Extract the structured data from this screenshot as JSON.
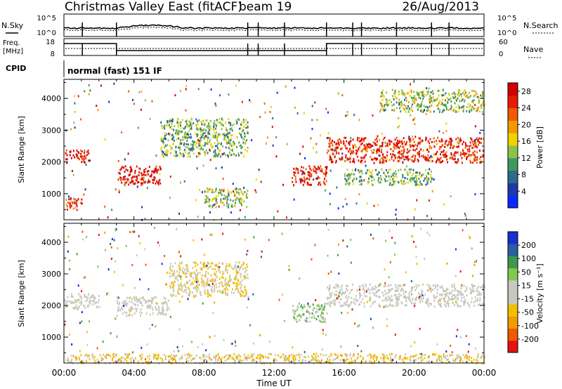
{
  "header": {
    "title": "Christmas Valley East (fitACF)",
    "beam": "beam 19",
    "date": "26/Aug/2013"
  },
  "panels": {
    "nsky_label": "N.Sky",
    "nsearch_label": "N.Search",
    "noise_ticks": [
      "10^5",
      "10^0"
    ],
    "freq_label_1": "Freq.",
    "freq_label_2": "[MHz]",
    "freq_ticks": [
      "18",
      "8"
    ],
    "nave_label": "Nave",
    "nave_ticks": [
      "60",
      "0"
    ],
    "cpid_label": "CPID",
    "cpid_value": "normal (fast) 151 IF"
  },
  "colors": {
    "power_scale": [
      "#0a2bff",
      "#1f3aa8",
      "#2e6a8c",
      "#3f9a5a",
      "#8bc34a",
      "#f0d200",
      "#f39a00",
      "#f05a00",
      "#e81a00",
      "#d40000"
    ],
    "velocity_scale": [
      "#e21212",
      "#f05a00",
      "#f59a00",
      "#f3c000",
      "#c8c8c0",
      "#c8c8c0",
      "#80c850",
      "#3c9a4a",
      "#2a5fa0",
      "#1a2fd0"
    ],
    "ground_scatter": "#c8c8c0"
  },
  "chart_data": [
    {
      "type": "heatmap",
      "name": "Power",
      "ylabel": "Slant Range [km]",
      "yticks": [
        1000,
        2000,
        3000,
        4000
      ],
      "ylim": [
        180,
        4600
      ],
      "colorbar_label": "Power [dB]",
      "colorbar_ticks": [
        4,
        8,
        12,
        16,
        20,
        24,
        28
      ],
      "colorbar_range": [
        0,
        30
      ],
      "bands": [
        {
          "t_start": 0.0,
          "t_end": 1.4,
          "r_start": 2000,
          "r_end": 2400,
          "peak": 27
        },
        {
          "t_start": 0.0,
          "t_end": 1.0,
          "r_start": 500,
          "r_end": 900,
          "peak": 26
        },
        {
          "t_start": 3.0,
          "t_end": 5.5,
          "r_start": 1300,
          "r_end": 1900,
          "peak": 28
        },
        {
          "t_start": 5.5,
          "t_end": 10.5,
          "r_start": 2200,
          "r_end": 3400,
          "peak": 12
        },
        {
          "t_start": 8.0,
          "t_end": 10.5,
          "r_start": 600,
          "r_end": 1200,
          "peak": 14
        },
        {
          "t_start": 13.0,
          "t_end": 15.0,
          "r_start": 1300,
          "r_end": 1900,
          "peak": 27
        },
        {
          "t_start": 15.0,
          "t_end": 24.0,
          "r_start": 2000,
          "r_end": 2800,
          "peak": 26
        },
        {
          "t_start": 16.0,
          "t_end": 21.0,
          "r_start": 1300,
          "r_end": 1800,
          "peak": 12
        },
        {
          "t_start": 18.0,
          "t_end": 24.0,
          "r_start": 3600,
          "r_end": 4300,
          "peak": 14
        }
      ]
    },
    {
      "type": "heatmap",
      "name": "Velocity",
      "ylabel": "Slant Range [km]",
      "yticks": [
        1000,
        2000,
        3000,
        4000
      ],
      "ylim": [
        180,
        4600
      ],
      "colorbar_label": "Velocity [m s⁻¹]",
      "colorbar_ticks": [
        200,
        100,
        50,
        15,
        -15,
        -50,
        -100,
        -200
      ],
      "colorbar_range": [
        -250,
        250
      ],
      "bands": [
        {
          "t_start": 0.0,
          "t_end": 2.0,
          "r_start": 1900,
          "r_end": 2400,
          "peak": 0
        },
        {
          "t_start": 3.0,
          "t_end": 6.0,
          "r_start": 1700,
          "r_end": 2300,
          "peak": 0
        },
        {
          "t_start": 6.0,
          "t_end": 10.5,
          "r_start": 2300,
          "r_end": 3400,
          "peak": -40
        },
        {
          "t_start": 15.0,
          "t_end": 24.0,
          "r_start": 2000,
          "r_end": 2700,
          "peak": 0
        },
        {
          "t_start": 13.0,
          "t_end": 15.0,
          "r_start": 1500,
          "r_end": 2100,
          "peak": 60
        },
        {
          "t_start": 0.0,
          "t_end": 24.0,
          "r_start": 200,
          "r_end": 500,
          "peak": -60
        }
      ]
    }
  ],
  "xaxis": {
    "label": "Time UT",
    "ticks": [
      "00:00",
      "04:00",
      "08:00",
      "12:00",
      "16:00",
      "20:00",
      "00:00"
    ]
  }
}
